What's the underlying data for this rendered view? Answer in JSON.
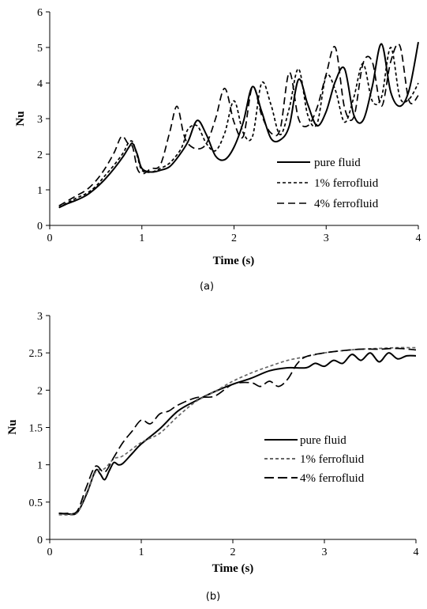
{
  "chart_data": [
    {
      "type": "line",
      "caption": "(a)",
      "xlabel": "Time (s)",
      "ylabel": "Nu",
      "xlim": [
        0,
        4
      ],
      "ylim": [
        0,
        6
      ],
      "xticks": [
        "0",
        "1",
        "2",
        "3",
        "4"
      ],
      "yticks": [
        "0",
        "1",
        "2",
        "3",
        "4",
        "5",
        "6"
      ],
      "grid": false,
      "legend_position": "right",
      "series": [
        {
          "name": "pure fluid",
          "style": "solid",
          "color": "#000000",
          "x": [
            0.1,
            0.2,
            0.3,
            0.4,
            0.5,
            0.6,
            0.7,
            0.8,
            0.86,
            0.9,
            0.95,
            1.0,
            1.1,
            1.2,
            1.3,
            1.4,
            1.5,
            1.6,
            1.7,
            1.8,
            1.9,
            2.0,
            2.1,
            2.2,
            2.3,
            2.4,
            2.5,
            2.6,
            2.7,
            2.8,
            2.9,
            3.0,
            3.1,
            3.2,
            3.3,
            3.4,
            3.5,
            3.6,
            3.7,
            3.8,
            3.9,
            4.0
          ],
          "y": [
            0.5,
            0.62,
            0.72,
            0.85,
            1.05,
            1.3,
            1.6,
            1.95,
            2.2,
            2.3,
            2.0,
            1.6,
            1.5,
            1.55,
            1.65,
            1.95,
            2.35,
            2.95,
            2.55,
            1.95,
            1.85,
            2.2,
            2.9,
            3.9,
            3.2,
            2.45,
            2.4,
            2.8,
            4.1,
            3.4,
            2.8,
            3.2,
            4.05,
            4.4,
            3.1,
            2.95,
            3.9,
            5.1,
            3.75,
            3.35,
            3.8,
            5.15
          ]
        },
        {
          "name": "1% ferrofluid",
          "style": "short-dash",
          "color": "#000000",
          "x": [
            0.1,
            0.2,
            0.3,
            0.4,
            0.5,
            0.6,
            0.7,
            0.8,
            0.85,
            0.9,
            0.95,
            1.0,
            1.1,
            1.2,
            1.3,
            1.4,
            1.45,
            1.5,
            1.6,
            1.7,
            1.8,
            1.9,
            2.0,
            2.1,
            2.2,
            2.3,
            2.4,
            2.5,
            2.6,
            2.7,
            2.8,
            2.9,
            3.0,
            3.1,
            3.2,
            3.3,
            3.4,
            3.5,
            3.6,
            3.7,
            3.8,
            3.9,
            4.0
          ],
          "y": [
            0.5,
            0.65,
            0.78,
            0.9,
            1.1,
            1.4,
            1.7,
            2.05,
            2.3,
            2.35,
            1.95,
            1.55,
            1.5,
            1.6,
            1.75,
            2.05,
            2.3,
            2.7,
            2.8,
            2.3,
            2.1,
            2.6,
            3.5,
            2.6,
            2.5,
            4.0,
            3.4,
            2.55,
            3.3,
            4.4,
            3.1,
            2.85,
            4.2,
            3.8,
            2.9,
            3.6,
            4.55,
            3.5,
            3.6,
            5.0,
            3.6,
            3.55,
            4.0
          ]
        },
        {
          "name": "4% ferrofluid",
          "style": "long-dash",
          "color": "#000000",
          "x": [
            0.1,
            0.2,
            0.3,
            0.4,
            0.5,
            0.6,
            0.7,
            0.78,
            0.85,
            0.9,
            0.95,
            1.0,
            1.05,
            1.1,
            1.2,
            1.3,
            1.38,
            1.45,
            1.5,
            1.6,
            1.7,
            1.8,
            1.9,
            2.0,
            2.1,
            2.2,
            2.3,
            2.4,
            2.5,
            2.6,
            2.7,
            2.8,
            2.9,
            3.0,
            3.1,
            3.2,
            3.3,
            3.4,
            3.5,
            3.6,
            3.7,
            3.8,
            3.9,
            4.0
          ],
          "y": [
            0.55,
            0.7,
            0.85,
            1.0,
            1.25,
            1.6,
            2.05,
            2.5,
            2.3,
            2.2,
            1.6,
            1.45,
            1.5,
            1.6,
            1.7,
            2.6,
            3.35,
            2.6,
            2.3,
            2.15,
            2.3,
            3.0,
            3.85,
            2.9,
            2.5,
            3.9,
            3.1,
            2.6,
            2.7,
            4.3,
            3.0,
            2.8,
            3.3,
            4.25,
            5.0,
            3.3,
            3.05,
            4.55,
            4.6,
            3.35,
            4.6,
            5.05,
            3.5,
            3.65
          ]
        }
      ]
    },
    {
      "type": "line",
      "caption": "(b)",
      "xlabel": "Time (s)",
      "ylabel": "Nu",
      "xlim": [
        0,
        4
      ],
      "ylim": [
        0,
        3
      ],
      "xticks": [
        "0",
        "1",
        "2",
        "3",
        "4"
      ],
      "yticks": [
        "0",
        "0.5",
        "1",
        "1.5",
        "2",
        "2.5",
        "3"
      ],
      "grid": false,
      "legend_position": "right",
      "series": [
        {
          "name": "pure fluid",
          "style": "solid",
          "color": "#000000",
          "x": [
            0.1,
            0.2,
            0.3,
            0.4,
            0.5,
            0.55,
            0.6,
            0.65,
            0.7,
            0.75,
            0.8,
            0.9,
            1.0,
            1.2,
            1.4,
            1.6,
            1.8,
            2.0,
            2.2,
            2.4,
            2.6,
            2.8,
            2.9,
            3.0,
            3.1,
            3.2,
            3.3,
            3.4,
            3.5,
            3.6,
            3.7,
            3.8,
            3.9,
            4.0
          ],
          "y": [
            0.35,
            0.34,
            0.36,
            0.6,
            0.92,
            0.88,
            0.8,
            0.92,
            1.03,
            1.0,
            1.02,
            1.15,
            1.28,
            1.48,
            1.72,
            1.86,
            1.98,
            2.08,
            2.16,
            2.26,
            2.3,
            2.3,
            2.36,
            2.32,
            2.4,
            2.36,
            2.48,
            2.4,
            2.5,
            2.38,
            2.5,
            2.42,
            2.46,
            2.46
          ]
        },
        {
          "name": "1% ferrofluid",
          "style": "short-dash",
          "color": "#666666",
          "x": [
            0.1,
            0.2,
            0.3,
            0.4,
            0.5,
            0.6,
            0.7,
            0.8,
            1.0,
            1.2,
            1.4,
            1.6,
            1.8,
            2.0,
            2.2,
            2.4,
            2.6,
            2.8,
            3.0,
            3.2,
            3.4,
            3.6,
            3.8,
            4.0
          ],
          "y": [
            0.33,
            0.33,
            0.36,
            0.62,
            0.9,
            0.95,
            1.08,
            1.12,
            1.3,
            1.42,
            1.65,
            1.85,
            1.98,
            2.12,
            2.23,
            2.32,
            2.4,
            2.45,
            2.5,
            2.53,
            2.55,
            2.56,
            2.57,
            2.57
          ]
        },
        {
          "name": "4% ferrofluid",
          "style": "long-dash",
          "color": "#000000",
          "x": [
            0.1,
            0.2,
            0.3,
            0.4,
            0.5,
            0.6,
            0.7,
            0.8,
            0.9,
            1.0,
            1.1,
            1.2,
            1.3,
            1.4,
            1.6,
            1.8,
            2.0,
            2.2,
            2.3,
            2.4,
            2.5,
            2.6,
            2.7,
            2.8,
            3.0,
            3.2,
            3.4,
            3.6,
            3.8,
            4.0
          ],
          "y": [
            0.35,
            0.35,
            0.38,
            0.7,
            0.98,
            0.9,
            1.1,
            1.3,
            1.45,
            1.6,
            1.55,
            1.68,
            1.72,
            1.8,
            1.9,
            1.92,
            2.08,
            2.1,
            2.05,
            2.12,
            2.05,
            2.15,
            2.35,
            2.45,
            2.5,
            2.53,
            2.55,
            2.55,
            2.56,
            2.54
          ]
        }
      ]
    }
  ]
}
